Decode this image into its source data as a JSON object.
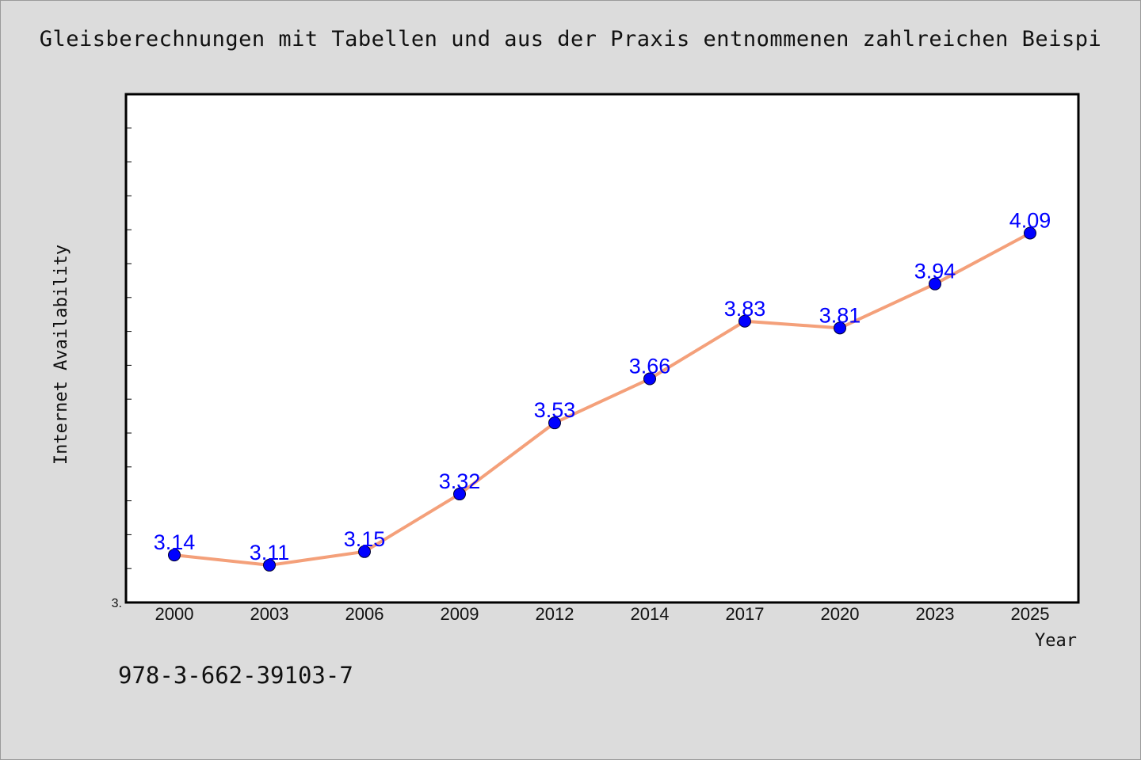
{
  "chart_data": {
    "type": "line",
    "title": "Gleisberechnungen mit Tabellen und aus der Praxis entnommenen zahlreichen Beispi",
    "xlabel": "Year",
    "ylabel": "Internet Availability",
    "categories": [
      "2000",
      "2003",
      "2006",
      "2009",
      "2012",
      "2014",
      "2017",
      "2020",
      "2023",
      "2025"
    ],
    "series": [
      {
        "values": [
          3.14,
          3.11,
          3.15,
          3.32,
          3.53,
          3.66,
          3.83,
          3.81,
          3.94,
          4.09
        ]
      }
    ],
    "data_labels": [
      "3.14",
      "3.11",
      "3.15",
      "3.32",
      "3.53",
      "3.66",
      "3.83",
      "3.81",
      "3.94",
      "4.09"
    ],
    "ylim": [
      3.0,
      4.5
    ],
    "y_tick_labels": [
      "3."
    ],
    "grid": false,
    "colors": {
      "line": "#f4a07a",
      "marker": "#0000ff",
      "data_label": "#0000ff",
      "plot_background": "#ffffff",
      "page_background": "#dcdcdc"
    }
  },
  "footer": {
    "isbn": "978-3-662-39103-7"
  }
}
